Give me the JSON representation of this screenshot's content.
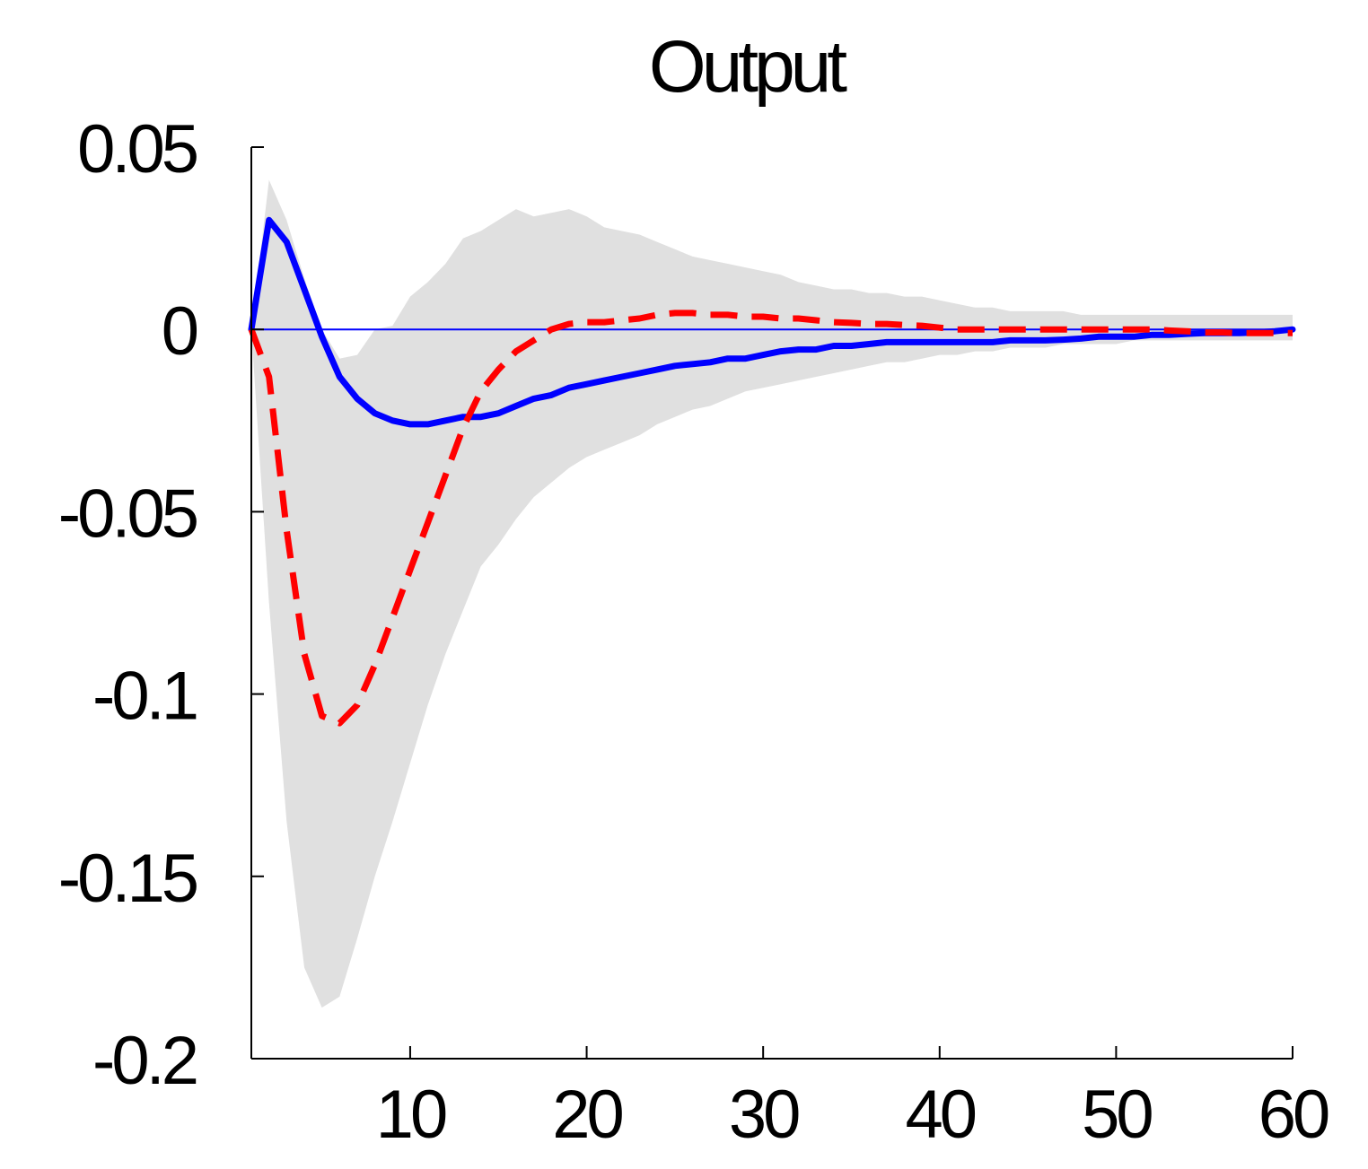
{
  "chart_data": {
    "type": "line",
    "title": "Output",
    "xlabel": "",
    "ylabel": "",
    "xlim": [
      1,
      60
    ],
    "ylim": [
      -0.2,
      0.05
    ],
    "x_ticks": [
      10,
      20,
      30,
      40,
      50,
      60
    ],
    "y_ticks": [
      0.05,
      0,
      -0.05,
      -0.1,
      -0.15,
      -0.2
    ],
    "x_tick_labels": [
      "10",
      "20",
      "30",
      "40",
      "50",
      "60"
    ],
    "y_tick_labels": [
      "0.05",
      "0",
      "-0.05",
      "-0.1",
      "-0.15",
      "-0.2"
    ],
    "grid": false,
    "legend": "none",
    "zero_line": 0,
    "x": [
      1,
      2,
      3,
      4,
      5,
      6,
      7,
      8,
      9,
      10,
      11,
      12,
      13,
      14,
      15,
      16,
      17,
      18,
      19,
      20,
      21,
      22,
      23,
      24,
      25,
      26,
      27,
      28,
      29,
      30,
      31,
      32,
      33,
      34,
      35,
      36,
      37,
      38,
      39,
      40,
      41,
      42,
      43,
      44,
      45,
      46,
      47,
      48,
      49,
      50,
      51,
      52,
      53,
      54,
      55,
      56,
      57,
      58,
      59,
      60
    ],
    "band": {
      "color": "#e0e0e0",
      "upper": [
        0.0,
        0.041,
        0.03,
        0.014,
        0.0,
        -0.008,
        -0.007,
        0.0,
        0.001,
        0.009,
        0.013,
        0.018,
        0.025,
        0.027,
        0.03,
        0.033,
        0.031,
        0.032,
        0.033,
        0.031,
        0.028,
        0.027,
        0.026,
        0.024,
        0.022,
        0.02,
        0.019,
        0.018,
        0.017,
        0.016,
        0.015,
        0.013,
        0.012,
        0.011,
        0.011,
        0.01,
        0.01,
        0.009,
        0.009,
        0.008,
        0.007,
        0.006,
        0.006,
        0.005,
        0.005,
        0.005,
        0.005,
        0.004,
        0.004,
        0.004,
        0.004,
        0.004,
        0.004,
        0.004,
        0.004,
        0.004,
        0.004,
        0.004,
        0.004,
        0.004
      ],
      "lower": [
        0.0,
        -0.075,
        -0.135,
        -0.175,
        -0.186,
        -0.183,
        -0.167,
        -0.15,
        -0.135,
        -0.119,
        -0.103,
        -0.089,
        -0.077,
        -0.065,
        -0.059,
        -0.052,
        -0.046,
        -0.042,
        -0.038,
        -0.035,
        -0.033,
        -0.031,
        -0.029,
        -0.026,
        -0.024,
        -0.022,
        -0.021,
        -0.019,
        -0.017,
        -0.016,
        -0.015,
        -0.014,
        -0.013,
        -0.012,
        -0.011,
        -0.01,
        -0.009,
        -0.009,
        -0.008,
        -0.007,
        -0.007,
        -0.006,
        -0.006,
        -0.005,
        -0.005,
        -0.005,
        -0.004,
        -0.004,
        -0.004,
        -0.004,
        -0.003,
        -0.003,
        -0.003,
        -0.003,
        -0.003,
        -0.003,
        -0.003,
        -0.003,
        -0.003,
        -0.003
      ]
    },
    "series": [
      {
        "color": "#0000ff",
        "style": "solid",
        "values": [
          0.0,
          0.03,
          0.024,
          0.011,
          -0.002,
          -0.013,
          -0.019,
          -0.023,
          -0.025,
          -0.026,
          -0.026,
          -0.025,
          -0.024,
          -0.024,
          -0.023,
          -0.021,
          -0.019,
          -0.018,
          -0.016,
          -0.015,
          -0.014,
          -0.013,
          -0.012,
          -0.011,
          -0.01,
          -0.0095,
          -0.009,
          -0.008,
          -0.008,
          -0.007,
          -0.006,
          -0.0055,
          -0.0055,
          -0.0045,
          -0.0045,
          -0.004,
          -0.0035,
          -0.0035,
          -0.0035,
          -0.0035,
          -0.0035,
          -0.0035,
          -0.0035,
          -0.003,
          -0.003,
          -0.003,
          -0.0028,
          -0.0025,
          -0.002,
          -0.002,
          -0.002,
          -0.0015,
          -0.0015,
          -0.0012,
          -0.001,
          -0.001,
          -0.001,
          -0.0008,
          -0.0005,
          0.0
        ]
      },
      {
        "color": "#ff0000",
        "style": "dashed",
        "values": [
          0.0,
          -0.013,
          -0.055,
          -0.089,
          -0.106,
          -0.108,
          -0.103,
          -0.092,
          -0.079,
          -0.066,
          -0.053,
          -0.04,
          -0.027,
          -0.017,
          -0.011,
          -0.006,
          -0.003,
          0.0,
          0.0015,
          0.002,
          0.002,
          0.0025,
          0.003,
          0.004,
          0.0045,
          0.0045,
          0.004,
          0.004,
          0.0035,
          0.0035,
          0.003,
          0.003,
          0.0025,
          0.002,
          0.0018,
          0.0015,
          0.0015,
          0.0012,
          0.001,
          0.0005,
          0.0,
          0.0,
          0.0,
          0.0,
          0.0,
          0.0,
          0.0,
          0.0,
          0.0,
          0.0,
          0.0,
          0.0,
          -0.0003,
          -0.0005,
          -0.0008,
          -0.0008,
          -0.001,
          -0.001,
          -0.001,
          -0.001
        ]
      }
    ]
  }
}
